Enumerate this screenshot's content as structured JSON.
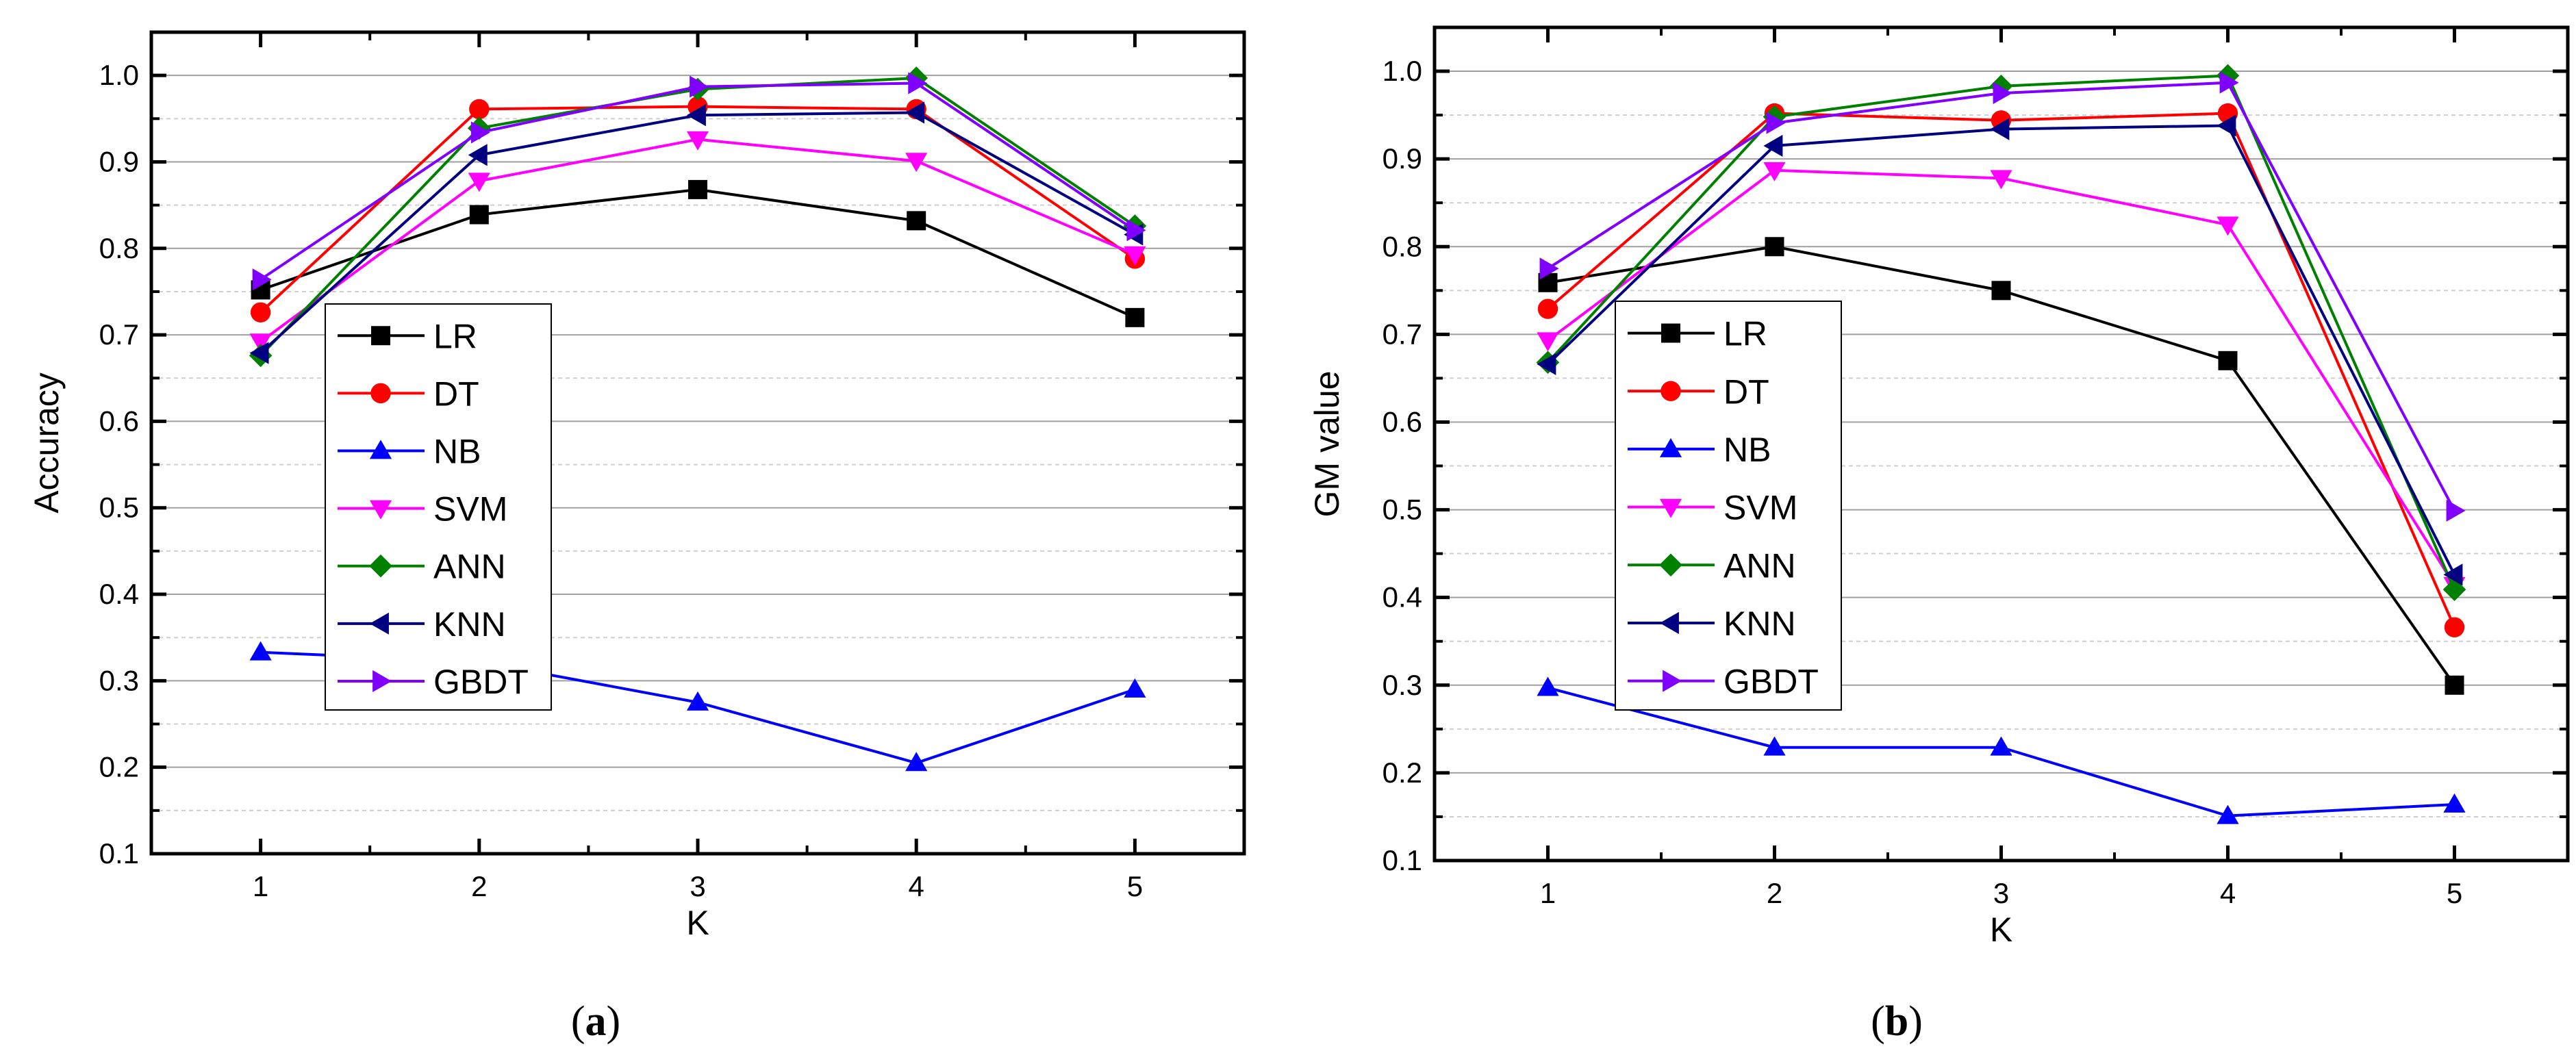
{
  "series_colors": {
    "LR": "#000000",
    "DT": "#ff0000",
    "NB": "#0000ff",
    "SVM": "#ff00ff",
    "ANN": "#008000",
    "KNN": "#000080",
    "GBDT": "#8000ff"
  },
  "series_markers": {
    "LR": "square",
    "DT": "circle",
    "NB": "triangle-up",
    "SVM": "triangle-down",
    "ANN": "diamond",
    "KNN": "triangle-left",
    "GBDT": "triangle-right"
  },
  "chart_data": [
    {
      "type": "line",
      "caption_letter": "a",
      "xlabel": "K",
      "ylabel": "Accuracy",
      "x": [
        1,
        2,
        3,
        4,
        5
      ],
      "xlim": [
        0.5,
        5.5
      ],
      "ylim": [
        0.1,
        1.05
      ],
      "xticks": [
        "1",
        "2",
        "3",
        "4",
        "5"
      ],
      "yticks": [
        "0.1",
        "0.2",
        "0.3",
        "0.4",
        "0.5",
        "0.6",
        "0.7",
        "0.8",
        "0.9",
        "1.0"
      ],
      "grid": true,
      "legend_position": "center-left",
      "series": [
        {
          "name": "LR",
          "values": [
            0.752,
            0.839,
            0.868,
            0.832,
            0.72
          ]
        },
        {
          "name": "DT",
          "values": [
            0.726,
            0.961,
            0.964,
            0.961,
            0.788
          ]
        },
        {
          "name": "NB",
          "values": [
            0.333,
            0.322,
            0.275,
            0.205,
            0.29
          ]
        },
        {
          "name": "SVM",
          "values": [
            0.692,
            0.878,
            0.926,
            0.901,
            0.793
          ]
        },
        {
          "name": "ANN",
          "values": [
            0.676,
            0.939,
            0.984,
            0.997,
            0.826
          ]
        },
        {
          "name": "KNN",
          "values": [
            0.679,
            0.908,
            0.954,
            0.957,
            0.816
          ]
        },
        {
          "name": "GBDT",
          "values": [
            0.764,
            0.934,
            0.987,
            0.991,
            0.821
          ]
        }
      ]
    },
    {
      "type": "line",
      "caption_letter": "b",
      "xlabel": "K",
      "ylabel": "GM value",
      "x": [
        1,
        2,
        3,
        4,
        5
      ],
      "xlim": [
        0.5,
        5.5
      ],
      "ylim": [
        0.1,
        1.05
      ],
      "xticks": [
        "1",
        "2",
        "3",
        "4",
        "5"
      ],
      "yticks": [
        "0.1",
        "0.2",
        "0.3",
        "0.4",
        "0.5",
        "0.6",
        "0.7",
        "0.8",
        "0.9",
        "1.0"
      ],
      "grid": true,
      "legend_position": "center-left",
      "series": [
        {
          "name": "LR",
          "values": [
            0.759,
            0.8,
            0.75,
            0.67,
            0.3
          ]
        },
        {
          "name": "DT",
          "values": [
            0.729,
            0.952,
            0.944,
            0.952,
            0.366
          ]
        },
        {
          "name": "NB",
          "values": [
            0.297,
            0.229,
            0.229,
            0.151,
            0.164
          ]
        },
        {
          "name": "SVM",
          "values": [
            0.693,
            0.887,
            0.878,
            0.825,
            0.414
          ]
        },
        {
          "name": "ANN",
          "values": [
            0.668,
            0.948,
            0.983,
            0.995,
            0.409
          ]
        },
        {
          "name": "KNN",
          "values": [
            0.666,
            0.915,
            0.934,
            0.938,
            0.426
          ]
        },
        {
          "name": "GBDT",
          "values": [
            0.775,
            0.941,
            0.975,
            0.987,
            0.499
          ]
        }
      ]
    }
  ]
}
